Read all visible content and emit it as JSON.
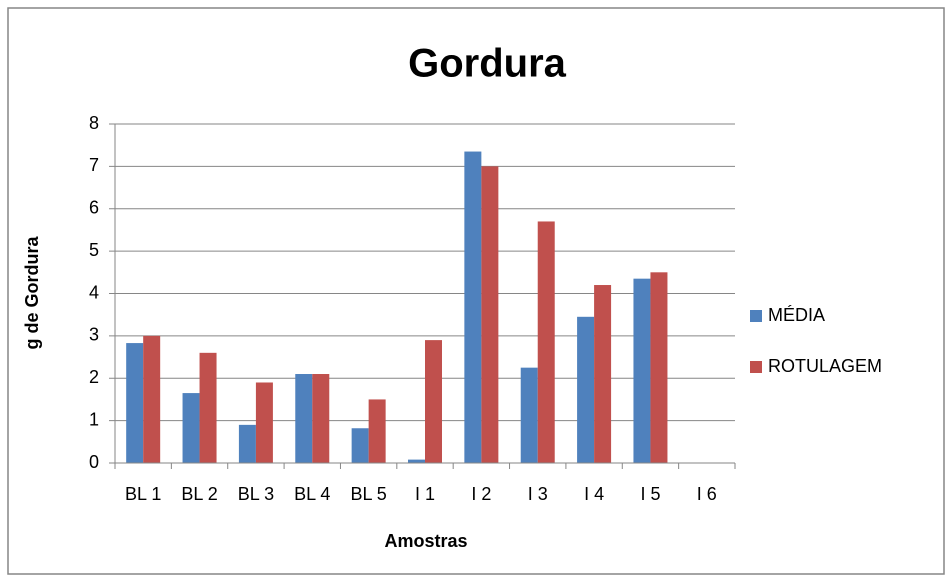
{
  "chart_data": {
    "type": "bar",
    "title": "Gordura",
    "x_label": "Amostras",
    "y_label": "g de Gordura",
    "categories": [
      "BL 1",
      "BL 2",
      "BL 3",
      "BL 4",
      "BL 5",
      "I 1",
      "I 2",
      "I 3",
      "I 4",
      "I 5",
      "I 6"
    ],
    "series": [
      {
        "name": "MÉDIA",
        "color": "#4f81bd",
        "values": [
          2.83,
          1.65,
          0.9,
          2.1,
          0.82,
          0.08,
          7.35,
          2.25,
          3.45,
          4.35,
          null
        ]
      },
      {
        "name": "ROTULAGEM",
        "color": "#c0504d",
        "values": [
          3,
          2.6,
          1.9,
          2.1,
          1.5,
          2.9,
          7,
          5.7,
          4.2,
          4.5,
          null
        ]
      }
    ],
    "ylim": [
      0,
      8
    ],
    "yticks": [
      0,
      1,
      2,
      3,
      4,
      5,
      6,
      7,
      8
    ],
    "grid": true,
    "legend": "right"
  }
}
